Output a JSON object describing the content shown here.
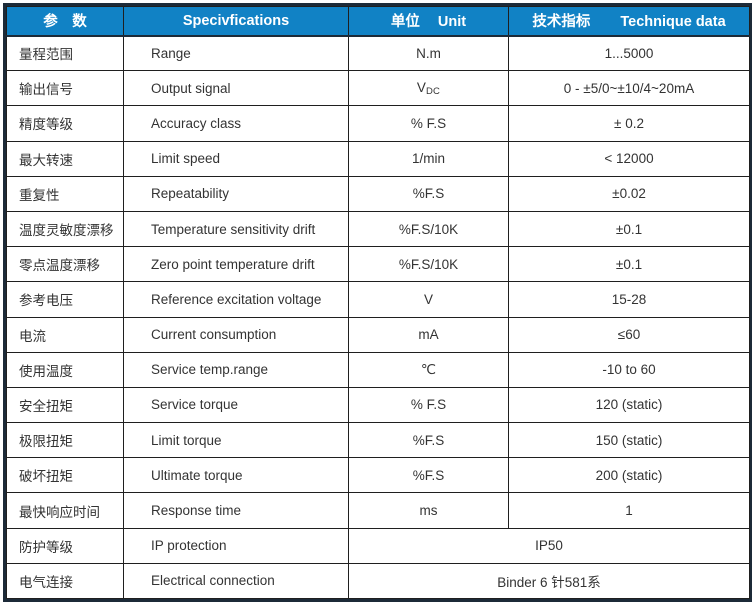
{
  "colors": {
    "header_bg": "#1182c5",
    "header_text": "#ffffff",
    "grid": "#1f1f1f",
    "outer_border": "#1c2a38",
    "body_text": "#333333"
  },
  "header": {
    "param_zh": "参　数",
    "spec_en": "Specivfications",
    "unit_zh": "单位",
    "unit_en": "Unit",
    "tech_zh": "技术指标",
    "tech_en": "Technique data"
  },
  "rows": [
    {
      "param_zh": "量程范围",
      "spec": "Range",
      "unit": "N.m",
      "value": "1...5000"
    },
    {
      "param_zh": "输出信号",
      "spec": "Output signal",
      "unit": "V",
      "unit_sub": "DC",
      "value": "0 - ±5/0~±10/4~20mA"
    },
    {
      "param_zh": "精度等级",
      "spec": "Accuracy class",
      "unit": "% F.S",
      "value": "± 0.2"
    },
    {
      "param_zh": "最大转速",
      "spec": "Limit speed",
      "unit": "1/min",
      "value": "< 12000"
    },
    {
      "param_zh": "重复性",
      "spec": "Repeatability",
      "unit": "%F.S",
      "value": "±0.02"
    },
    {
      "param_zh": "温度灵敏度漂移",
      "spec": "Temperature sensitivity drift",
      "unit": "%F.S/10K",
      "value": "±0.1"
    },
    {
      "param_zh": "零点温度漂移",
      "spec": "Zero point temperature drift",
      "unit": "%F.S/10K",
      "value": "±0.1"
    },
    {
      "param_zh": "参考电压",
      "spec": "Reference excitation voltage",
      "unit": "V",
      "value": "15-28"
    },
    {
      "param_zh": "电流",
      "spec": "Current consumption",
      "unit": "mA",
      "value": "≤60"
    },
    {
      "param_zh": "使用温度",
      "spec": "Service temp.range",
      "unit": "℃",
      "value": "-10 to 60"
    },
    {
      "param_zh": "安全扭矩",
      "spec": "Service torque",
      "unit": "% F.S",
      "value": "120 (static)"
    },
    {
      "param_zh": "极限扭矩",
      "spec": "Limit torque",
      "unit": "%F.S",
      "value": "150 (static)"
    },
    {
      "param_zh": "破坏扭矩",
      "spec": "Ultimate torque",
      "unit": "%F.S",
      "value": "200 (static)"
    },
    {
      "param_zh": "最快响应时间",
      "spec": "Response time",
      "unit": "ms",
      "value": "1"
    }
  ],
  "span_rows": [
    {
      "param_zh": "防护等级",
      "spec": "IP protection",
      "value": "IP50"
    },
    {
      "param_zh": "电气连接",
      "spec": "Electrical connection",
      "value": "Binder 6 针581系"
    }
  ]
}
